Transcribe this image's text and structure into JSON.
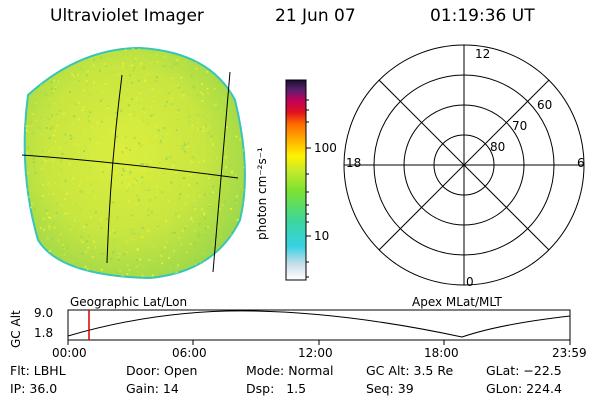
{
  "header": {
    "title": "Ultraviolet Imager",
    "date": "21 Jun 07",
    "time": "01:19:36 UT"
  },
  "colorbar": {
    "unit_label": "photon cm⁻²s⁻¹",
    "ticks": [
      "100",
      "10"
    ]
  },
  "polar": {
    "hour_labels": [
      "12",
      "18",
      "6",
      "0"
    ],
    "lat_labels": [
      "60",
      "70",
      "80"
    ]
  },
  "timeline": {
    "left_title": "Geographic Lat/Lon",
    "right_title": "Apex MLat/MLT",
    "ylabel": "GC Alt",
    "y_ticks": [
      "9.0",
      "1.8"
    ],
    "x_ticks": [
      "00:00",
      "06:00",
      "12:00",
      "18:00",
      "23:59"
    ],
    "cursor_time": "01:19:36"
  },
  "info": {
    "flt": "Flt: LBHL",
    "ip": "IP: 36.0",
    "door": "Door: Open",
    "gain": "Gain: 14",
    "mode": "Mode: Normal",
    "dsp": "Dsp:   1.5",
    "gcalt": "GC Alt: 3.5 Re",
    "seq": "Seq: 39",
    "glat": "GLat: −22.5",
    "glon": "GLon: 224.4"
  },
  "colors": {
    "disk_fill": "#cfe83a",
    "disk_edge": "#36c5b8",
    "cursor": "#d40000"
  }
}
